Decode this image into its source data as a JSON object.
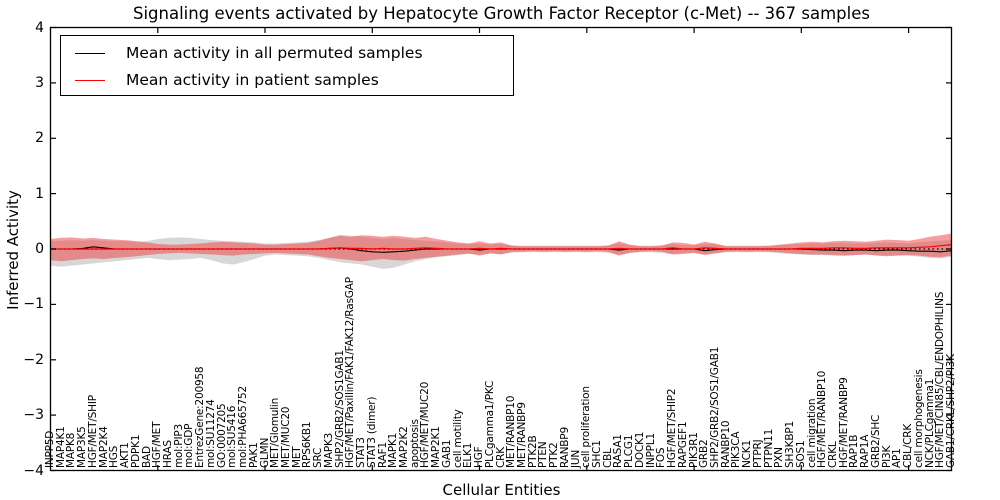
{
  "title": "Signaling events activated by Hepatocyte Growth Factor Receptor (c-Met) -- 367 samples",
  "axes": {
    "ylabel": "Inferred Activity",
    "xlabel": "Cellular Entities",
    "ytick_labels": [
      "4",
      "3",
      "2",
      "1",
      "0",
      "−1",
      "−2",
      "−3",
      "−4"
    ],
    "ytick_values": [
      4,
      3,
      2,
      1,
      0,
      -1,
      -2,
      -3,
      -4
    ]
  },
  "legend": {
    "items": [
      {
        "label": "Mean activity in all permuted samples",
        "color": "#000000"
      },
      {
        "label": "Mean activity in patient samples",
        "color": "#ff0000"
      }
    ]
  },
  "colors": {
    "permuted_line": "#000000",
    "patient_line": "#ff0000",
    "permuted_band": "#b0b0b0",
    "patient_band": "#ee4444",
    "zero_line": "#000000",
    "spine": "#000000"
  },
  "chart_data": {
    "type": "line",
    "title": "Signaling events activated by Hepatocyte Growth Factor Receptor (c-Met) -- 367 samples",
    "xlabel": "Cellular Entities",
    "ylabel": "Inferred Activity",
    "ylim": [
      -4,
      4
    ],
    "xlim": [
      0,
      84
    ],
    "grid": false,
    "legend_position": "upper left",
    "zero_line_dotted": true,
    "categories": [
      "INPP5D",
      "MAP4K1",
      "MAPK8",
      "MAP3K5",
      "HGF/MET/SHIP",
      "MAP2K4",
      "HGS",
      "AKT1",
      "PDPK1",
      "BAD",
      "HGF/MET",
      "HRAS",
      "mol:PIP3",
      "mol:GDP",
      "EntrezGene:200958",
      "mol:SU11274",
      "GO:0007205",
      "mol:SU5416",
      "mol:PHA665752",
      "PAK1",
      "GLMN",
      "MET/Glomulin",
      "MET/MUC20",
      "MET",
      "RPS6KB1",
      "SRC",
      "MAPK3",
      "SHP2/GRB2/SOS1GAB1",
      "HGF/MET/Paxillin/FAK1/FAK12/RasGAP",
      "STAT3",
      "STAT3 (dimer)",
      "RAF1",
      "MAPK1",
      "MAP2K2",
      "apoptosis",
      "HGF/MET/MUC20",
      "MAP2K1",
      "GAB1",
      "cell motility",
      "ELK1",
      "HGF",
      "PLCgamma1/PKC",
      "CRK",
      "MET/RANBP10",
      "MET/RANBP9",
      "PTK2B",
      "PTEN",
      "PTK2",
      "RANBP9",
      "JUN",
      "cell proliferation",
      "SHC1",
      "CBL",
      "RASA1",
      "PLCG1",
      "DOCK1",
      "INPPL1",
      "FOS",
      "HGF/MET/SHIP2",
      "RAPGEF1",
      "PIK3R1",
      "GRB2",
      "SHP2/GRB2/SOS1/GAB1",
      "RANBP10",
      "PIK3CA",
      "NCK1",
      "PTPRJ",
      "PTPN11",
      "PXN",
      "SH3KBP1",
      "SOS1",
      "cell migration",
      "HGF/MET/RANBP10",
      "CRKL",
      "HGF/MET/RANBP9",
      "RAP1B",
      "RAP1A",
      "GRB2/SHC",
      "PI3K",
      "AP1",
      "CBL/CRK",
      "cell morphogenesis",
      "NCK/PLCgamma1",
      "HGF/MET/CIN85/CBL/ENDOPHILINS",
      "GAB1/CRKL/SHP2/PI3K"
    ],
    "series": [
      {
        "name": "Mean activity in all permuted samples",
        "color": "#000000",
        "band_color": "#b0b0b0",
        "values": [
          0,
          0,
          0,
          0.01,
          0.04,
          0.02,
          0,
          0,
          0,
          0,
          0,
          0,
          0,
          0,
          0,
          0,
          0,
          0,
          0,
          0,
          0,
          0,
          0,
          0,
          0,
          0,
          0.01,
          0.02,
          0,
          -0.03,
          -0.05,
          -0.06,
          -0.05,
          -0.04,
          -0.02,
          0,
          0,
          0,
          0,
          0,
          -0.02,
          0,
          0,
          0,
          0,
          0,
          0,
          0,
          0,
          0,
          0,
          0,
          0,
          -0.02,
          0,
          0,
          0,
          0,
          0,
          0,
          0,
          -0.03,
          -0.01,
          0,
          0,
          0,
          0,
          0,
          0,
          0,
          0,
          -0.01,
          -0.02,
          -0.02,
          -0.03,
          -0.02,
          -0.02,
          -0.03,
          -0.02,
          -0.02,
          -0.03,
          -0.04,
          -0.04,
          -0.05,
          -0.03
        ],
        "band_hi": [
          0.14,
          0.15,
          0.16,
          0.15,
          0.16,
          0.15,
          0.14,
          0.14,
          0.13,
          0.14,
          0.18,
          0.2,
          0.21,
          0.2,
          0.18,
          0.16,
          0.15,
          0.14,
          0.13,
          0.12,
          0.1,
          0.1,
          0.11,
          0.12,
          0.13,
          0.16,
          0.2,
          0.26,
          0.24,
          0.22,
          0.2,
          0.18,
          0.2,
          0.18,
          0.16,
          0.15,
          0.14,
          0.12,
          0.1,
          0.09,
          0.1,
          0.08,
          0.09,
          0.07,
          0.06,
          0.06,
          0.06,
          0.06,
          0.06,
          0.06,
          0.06,
          0.06,
          0.07,
          0.1,
          0.07,
          0.06,
          0.06,
          0.07,
          0.09,
          0.07,
          0.07,
          0.09,
          0.08,
          0.06,
          0.06,
          0.06,
          0.06,
          0.06,
          0.07,
          0.08,
          0.09,
          0.1,
          0.1,
          0.11,
          0.11,
          0.1,
          0.1,
          0.11,
          0.12,
          0.11,
          0.1,
          0.12,
          0.14,
          0.15,
          0.16
        ],
        "band_lo": [
          -0.3,
          -0.32,
          -0.3,
          -0.28,
          -0.26,
          -0.24,
          -0.22,
          -0.2,
          -0.18,
          -0.16,
          -0.18,
          -0.2,
          -0.19,
          -0.18,
          -0.16,
          -0.2,
          -0.26,
          -0.28,
          -0.24,
          -0.18,
          -0.12,
          -0.1,
          -0.11,
          -0.12,
          -0.13,
          -0.16,
          -0.2,
          -0.24,
          -0.26,
          -0.28,
          -0.32,
          -0.36,
          -0.34,
          -0.28,
          -0.22,
          -0.18,
          -0.15,
          -0.13,
          -0.11,
          -0.09,
          -0.1,
          -0.08,
          -0.09,
          -0.07,
          -0.06,
          -0.06,
          -0.06,
          -0.06,
          -0.06,
          -0.06,
          -0.06,
          -0.06,
          -0.07,
          -0.1,
          -0.07,
          -0.06,
          -0.06,
          -0.07,
          -0.09,
          -0.07,
          -0.07,
          -0.09,
          -0.08,
          -0.06,
          -0.06,
          -0.06,
          -0.06,
          -0.06,
          -0.08,
          -0.09,
          -0.1,
          -0.11,
          -0.11,
          -0.12,
          -0.12,
          -0.11,
          -0.1,
          -0.11,
          -0.12,
          -0.11,
          -0.12,
          -0.14,
          -0.16,
          -0.17,
          -0.14
        ]
      },
      {
        "name": "Mean activity in patient samples",
        "color": "#ff0000",
        "band_color": "#ee4444",
        "values": [
          0,
          0,
          0,
          0,
          0,
          0,
          0,
          0,
          0,
          0,
          0,
          0,
          0,
          0,
          0,
          0,
          0,
          0,
          0,
          0,
          0,
          0,
          0,
          0,
          0,
          0,
          0.01,
          0.02,
          0.01,
          0.01,
          0,
          0.01,
          0,
          0,
          0.01,
          0.02,
          0.01,
          0,
          0,
          0,
          0.01,
          0,
          0.01,
          0,
          0,
          0,
          0,
          0,
          0,
          0,
          0,
          0,
          0,
          0.01,
          0,
          0,
          0,
          0,
          0.02,
          0,
          0,
          0.02,
          0.01,
          0,
          0,
          0,
          0,
          0,
          0,
          0,
          0.01,
          0.01,
          0.01,
          0.02,
          0.02,
          0.01,
          0.01,
          0.02,
          0.02,
          0.02,
          0.02,
          0.03,
          0.04,
          0.06,
          0.08
        ],
        "band_hi": [
          0.18,
          0.2,
          0.21,
          0.19,
          0.2,
          0.18,
          0.17,
          0.16,
          0.14,
          0.12,
          0.09,
          0.08,
          0.08,
          0.09,
          0.1,
          0.12,
          0.13,
          0.12,
          0.11,
          0.1,
          0.08,
          0.08,
          0.09,
          0.1,
          0.11,
          0.15,
          0.2,
          0.24,
          0.22,
          0.25,
          0.24,
          0.22,
          0.24,
          0.22,
          0.2,
          0.22,
          0.18,
          0.15,
          0.12,
          0.1,
          0.14,
          0.1,
          0.12,
          0.06,
          0.05,
          0.05,
          0.05,
          0.05,
          0.05,
          0.05,
          0.05,
          0.05,
          0.06,
          0.14,
          0.08,
          0.05,
          0.05,
          0.06,
          0.12,
          0.11,
          0.08,
          0.13,
          0.1,
          0.05,
          0.05,
          0.05,
          0.05,
          0.06,
          0.08,
          0.1,
          0.12,
          0.13,
          0.12,
          0.14,
          0.15,
          0.14,
          0.13,
          0.15,
          0.17,
          0.16,
          0.15,
          0.18,
          0.22,
          0.25,
          0.28
        ],
        "band_lo": [
          -0.2,
          -0.22,
          -0.2,
          -0.18,
          -0.17,
          -0.18,
          -0.16,
          -0.15,
          -0.13,
          -0.11,
          -0.09,
          -0.08,
          -0.07,
          -0.08,
          -0.09,
          -0.1,
          -0.11,
          -0.12,
          -0.1,
          -0.09,
          -0.08,
          -0.07,
          -0.08,
          -0.09,
          -0.1,
          -0.13,
          -0.16,
          -0.18,
          -0.2,
          -0.22,
          -0.2,
          -0.18,
          -0.2,
          -0.21,
          -0.18,
          -0.16,
          -0.14,
          -0.12,
          -0.1,
          -0.08,
          -0.12,
          -0.08,
          -0.1,
          -0.05,
          -0.05,
          -0.04,
          -0.05,
          -0.04,
          -0.05,
          -0.04,
          -0.05,
          -0.04,
          -0.05,
          -0.12,
          -0.07,
          -0.05,
          -0.04,
          -0.05,
          -0.1,
          -0.09,
          -0.07,
          -0.11,
          -0.08,
          -0.05,
          -0.04,
          -0.05,
          -0.04,
          -0.05,
          -0.06,
          -0.08,
          -0.09,
          -0.1,
          -0.1,
          -0.11,
          -0.12,
          -0.11,
          -0.1,
          -0.12,
          -0.13,
          -0.12,
          -0.11,
          -0.12,
          -0.14,
          -0.15,
          -0.12
        ]
      }
    ]
  }
}
